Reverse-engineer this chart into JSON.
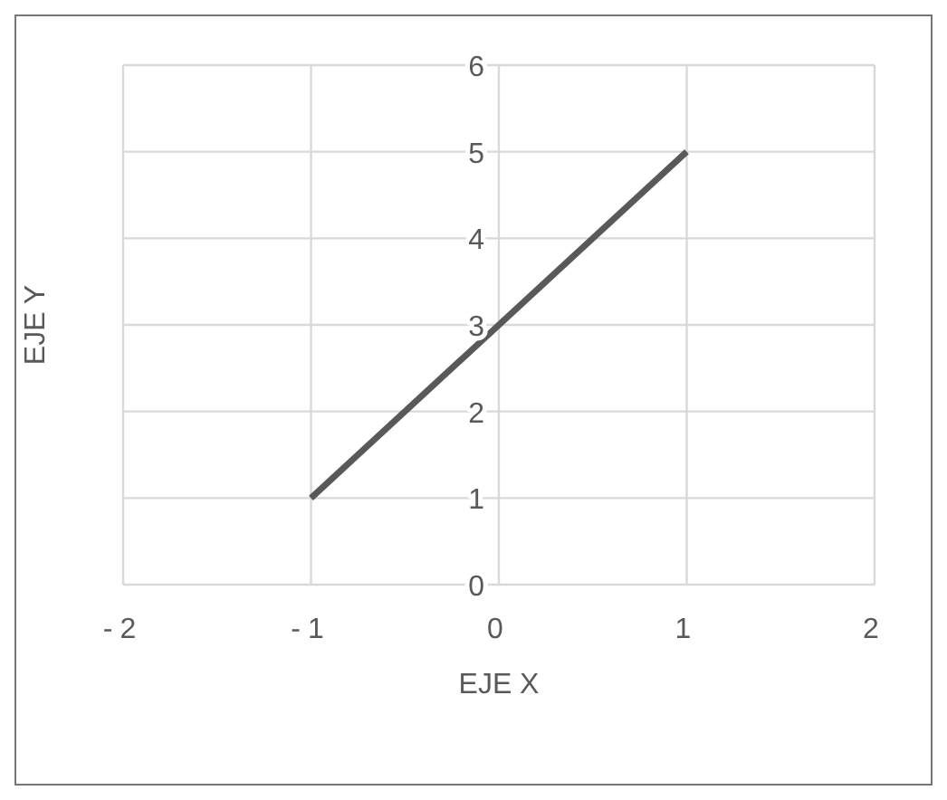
{
  "chart_data": {
    "type": "line",
    "xlabel": "EJE X",
    "ylabel": "EJE  Y",
    "x": [
      -1,
      1
    ],
    "series": [
      {
        "color": "#595959",
        "values": [
          1,
          5
        ]
      }
    ],
    "xlim": [
      -2,
      2
    ],
    "xticks": [
      -2,
      -1,
      0,
      1,
      2
    ],
    "ylim": [
      0,
      6
    ],
    "yticks": [
      0,
      1,
      2,
      3,
      4,
      5,
      6
    ],
    "grid": true,
    "marker": "none",
    "line_style": "solid"
  }
}
